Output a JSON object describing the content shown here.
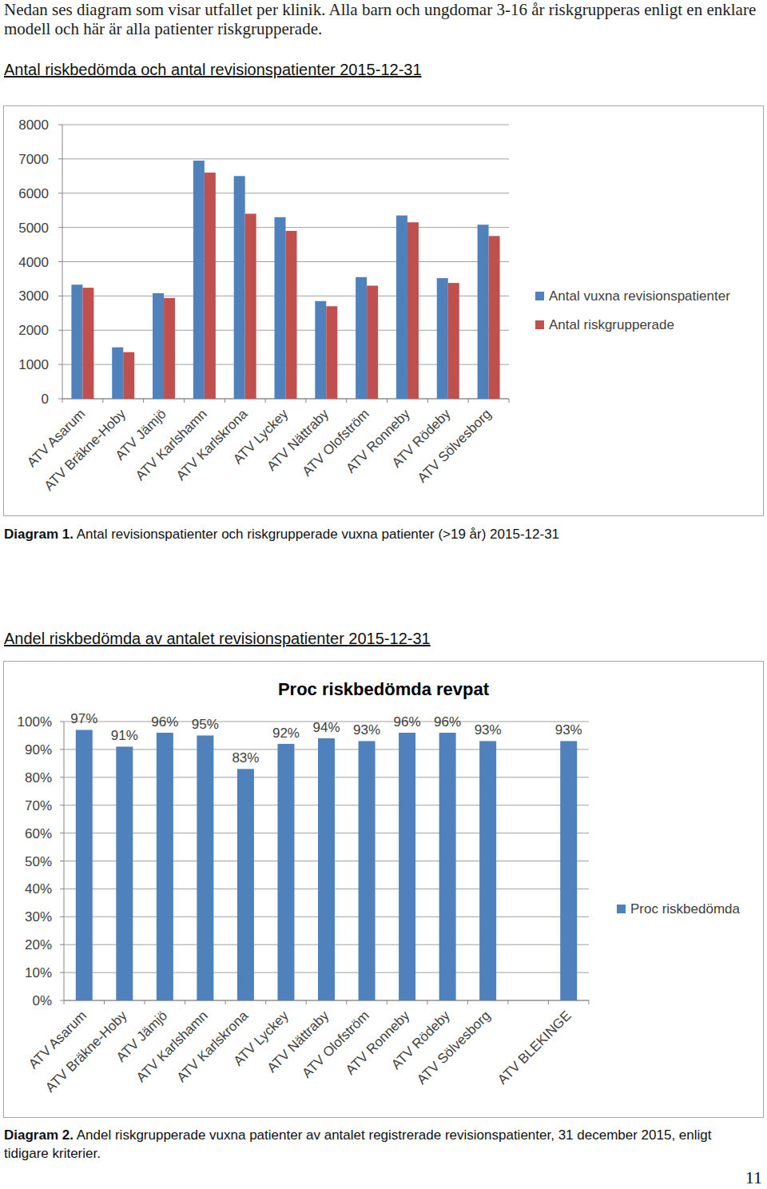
{
  "intro": "Nedan ses diagram som visar utfallet per klinik. Alla barn och ungdomar 3-16 år riskgrupperas enligt en enklare modell och här är alla patienter riskgrupperade.",
  "headings": [
    "Antal riskbedömda och antal revisionspatienter 2015-12-31",
    "Andel riskbedömda av antalet revisionspatienter 2015-12-31"
  ],
  "captions": [
    {
      "label": "Diagram 1.",
      "text": "Antal revisionspatienter och riskgrupperade vuxna patienter (>19 år) 2015-12-31"
    },
    {
      "label": "Diagram 2.",
      "text": "Andel riskgrupperade vuxna patienter av antalet registrerade revisionspatienter, 31 december 2015, enligt tidigare kriterier."
    }
  ],
  "page_number": "11",
  "chart_data": [
    {
      "type": "bar",
      "categories": [
        "ATV Asarum",
        "ATV Bräkne-Hoby",
        "ATV Jämjö",
        "ATV Karlshamn",
        "ATV Karlskrona",
        "ATV Lyckey",
        "ATV Nättraby",
        "ATV Olofström",
        "ATV Ronneby",
        "ATV Rödeby",
        "ATV Sölvesborg"
      ],
      "series": [
        {
          "name": "Antal vuxna revisionspatienter",
          "color": "#4f81bd",
          "values": [
            3330,
            1500,
            3080,
            6950,
            6500,
            5300,
            2850,
            3550,
            5350,
            3520,
            5080
          ]
        },
        {
          "name": "Antal riskgrupperade",
          "color": "#c0504d",
          "values": [
            3240,
            1360,
            2940,
            6600,
            5400,
            4900,
            2700,
            3300,
            5150,
            3380,
            4750
          ]
        }
      ],
      "ylim": [
        0,
        8000
      ],
      "yticks": [
        0,
        1000,
        2000,
        3000,
        4000,
        5000,
        6000,
        7000,
        8000
      ],
      "grid": true,
      "legend": "right"
    },
    {
      "type": "bar",
      "title": "Proc riskbedömda revpat",
      "categories": [
        "ATV Asarum",
        "ATV Bräkne-Hoby",
        "ATV Jämjö",
        "ATV Karlshamn",
        "ATV Karlskrona",
        "ATV Lyckey",
        "ATV Nättraby",
        "ATV Olofström",
        "ATV Ronneby",
        "ATV Rödeby",
        "ATV Sölvesborg",
        null,
        "ATV BLEKINGE"
      ],
      "series": [
        {
          "name": "Proc riskbedömda",
          "color": "#4f81bd",
          "values": [
            97,
            91,
            96,
            95,
            83,
            92,
            94,
            93,
            96,
            96,
            93,
            null,
            93
          ],
          "value_labels": [
            "97%",
            "91%",
            "96%",
            "95%",
            "83%",
            "92%",
            "94%",
            "93%",
            "96%",
            "96%",
            "93%",
            null,
            "93%"
          ]
        }
      ],
      "ylim": [
        0,
        100
      ],
      "yticks": [
        {
          "value": 0,
          "label": "0%"
        },
        {
          "value": 10,
          "label": "10%"
        },
        {
          "value": 20,
          "label": "20%"
        },
        {
          "value": 30,
          "label": "30%"
        },
        {
          "value": 40,
          "label": "40%"
        },
        {
          "value": 50,
          "label": "50%"
        },
        {
          "value": 60,
          "label": "60%"
        },
        {
          "value": 70,
          "label": "70%"
        },
        {
          "value": 80,
          "label": "80%"
        },
        {
          "value": 90,
          "label": "90%"
        },
        {
          "value": 100,
          "label": "100%"
        }
      ],
      "grid": true,
      "legend": "right",
      "data_labels": true
    }
  ]
}
